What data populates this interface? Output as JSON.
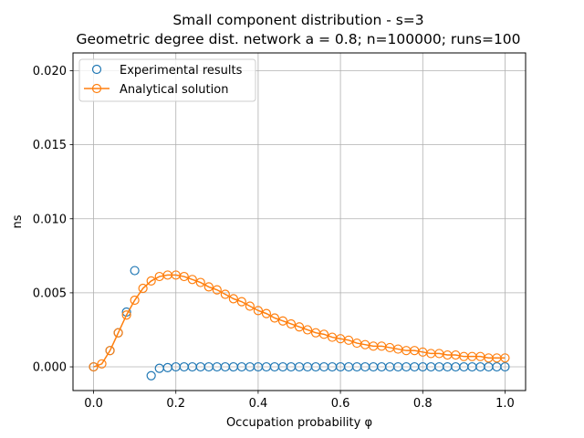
{
  "chart_data": {
    "type": "line",
    "title_line1": "Small component distribution - s=3",
    "title_line2": "Geometric degree dist. network a = 0.8; n=100000; runs=100",
    "xlabel": "Occupation probability φ",
    "ylabel": "ns",
    "xlim": [
      -0.05,
      1.05
    ],
    "ylim": [
      -0.0016,
      0.0212
    ],
    "xticks": [
      0.0,
      0.2,
      0.4,
      0.6,
      0.8,
      1.0
    ],
    "xtick_labels": [
      "0.0",
      "0.2",
      "0.4",
      "0.6",
      "0.8",
      "1.0"
    ],
    "yticks": [
      0.0,
      0.005,
      0.01,
      0.015,
      0.02
    ],
    "ytick_labels": [
      "0.000",
      "0.005",
      "0.010",
      "0.015",
      "0.020"
    ],
    "grid": true,
    "legend_position": "top-left",
    "series": [
      {
        "name": "Experimental results",
        "style": "markers",
        "color": "#1f77b4",
        "x": [
          0.0,
          0.02,
          0.04,
          0.06,
          0.08,
          0.1,
          0.12,
          0.14,
          0.16,
          0.18,
          0.2,
          0.22,
          0.24,
          0.26,
          0.28,
          0.3,
          0.32,
          0.34,
          0.36,
          0.38,
          0.4,
          0.42,
          0.44,
          0.46,
          0.48,
          0.5,
          0.52,
          0.54,
          0.56,
          0.58,
          0.6,
          0.62,
          0.64,
          0.66,
          0.68,
          0.7,
          0.72,
          0.74,
          0.76,
          0.78,
          0.8,
          0.82,
          0.84,
          0.86,
          0.88,
          0.9,
          0.92,
          0.94,
          0.96,
          0.98,
          1.0
        ],
        "y": [
          0.0,
          null,
          0.0011,
          0.0023,
          0.0037,
          0.0065,
          null,
          -0.0006,
          -0.0001,
          -5e-05,
          0.0,
          0.0,
          0.0,
          0.0,
          0.0,
          0.0,
          0.0,
          0.0,
          0.0,
          0.0,
          0.0,
          0.0,
          0.0,
          0.0,
          0.0,
          0.0,
          0.0,
          0.0,
          0.0,
          0.0,
          0.0,
          0.0,
          0.0,
          0.0,
          0.0,
          0.0,
          0.0,
          0.0,
          0.0,
          0.0,
          0.0,
          0.0,
          0.0,
          0.0,
          0.0,
          0.0,
          0.0,
          0.0,
          0.0,
          0.0,
          0.0
        ]
      },
      {
        "name": "Analytical solution",
        "style": "line-markers",
        "color": "#ff7f0e",
        "x": [
          0.0,
          0.02,
          0.04,
          0.06,
          0.08,
          0.1,
          0.12,
          0.14,
          0.16,
          0.18,
          0.2,
          0.22,
          0.24,
          0.26,
          0.28,
          0.3,
          0.32,
          0.34,
          0.36,
          0.38,
          0.4,
          0.42,
          0.44,
          0.46,
          0.48,
          0.5,
          0.52,
          0.54,
          0.56,
          0.58,
          0.6,
          0.62,
          0.64,
          0.66,
          0.68,
          0.7,
          0.72,
          0.74,
          0.76,
          0.78,
          0.8,
          0.82,
          0.84,
          0.86,
          0.88,
          0.9,
          0.92,
          0.94,
          0.96,
          0.98,
          1.0
        ],
        "y": [
          0.0,
          0.0002,
          0.0011,
          0.0023,
          0.0035,
          0.0045,
          0.0053,
          0.0058,
          0.0061,
          0.0062,
          0.0062,
          0.0061,
          0.0059,
          0.0057,
          0.0054,
          0.0052,
          0.0049,
          0.0046,
          0.0044,
          0.0041,
          0.0038,
          0.0036,
          0.0033,
          0.0031,
          0.0029,
          0.0027,
          0.0025,
          0.0023,
          0.0022,
          0.002,
          0.0019,
          0.0018,
          0.0016,
          0.0015,
          0.0014,
          0.0014,
          0.0013,
          0.0012,
          0.0011,
          0.0011,
          0.001,
          0.0009,
          0.0009,
          0.0008,
          0.0008,
          0.0007,
          0.0007,
          0.0007,
          0.0006,
          0.0006,
          0.0006
        ]
      }
    ]
  }
}
